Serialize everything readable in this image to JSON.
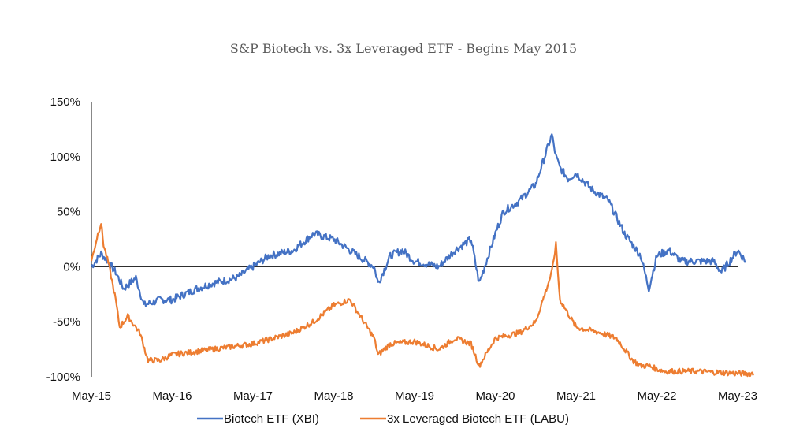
{
  "chart_data": {
    "type": "line",
    "title": "S&P Biotech vs. 3x Leveraged ETF - Begins May 2015",
    "xlabel": "",
    "ylabel": "",
    "x_ticks": [
      "May-15",
      "May-16",
      "May-17",
      "May-18",
      "May-19",
      "May-20",
      "May-21",
      "May-22",
      "May-23"
    ],
    "y_ticks": [
      "150%",
      "100%",
      "50%",
      "0%",
      "-50%",
      "-100%"
    ],
    "ylim": [
      -100,
      150
    ],
    "xlim": [
      0,
      8
    ],
    "grid": false,
    "legend_position": "bottom",
    "series": [
      {
        "name": "Biotech ETF (XBI)",
        "color": "#4472c4",
        "x": [
          0,
          0.12,
          0.2,
          0.3,
          0.4,
          0.55,
          0.65,
          0.85,
          1.0,
          1.3,
          1.5,
          1.8,
          2.0,
          2.2,
          2.5,
          2.75,
          3.0,
          3.2,
          3.5,
          3.55,
          3.7,
          3.85,
          4.0,
          4.3,
          4.5,
          4.7,
          4.8,
          5.0,
          5.1,
          5.3,
          5.5,
          5.7,
          5.75,
          5.8,
          5.9,
          6.0,
          6.2,
          6.4,
          6.6,
          6.8,
          6.9,
          7.0,
          7.15,
          7.3,
          7.5,
          7.7,
          7.8,
          8.0,
          8.1
        ],
        "y": [
          0,
          12,
          5,
          -5,
          -20,
          -10,
          -35,
          -30,
          -30,
          -20,
          -15,
          -10,
          0,
          10,
          15,
          30,
          25,
          15,
          0,
          -15,
          10,
          15,
          5,
          0,
          15,
          25,
          -15,
          30,
          50,
          60,
          75,
          120,
          100,
          90,
          80,
          85,
          70,
          60,
          30,
          10,
          -20,
          10,
          15,
          5,
          5,
          5,
          -5,
          15,
          5
        ]
      },
      {
        "name": "3x Leveraged Biotech ETF (LABU)",
        "color": "#ed7d31",
        "x": [
          0,
          0.08,
          0.12,
          0.15,
          0.22,
          0.3,
          0.35,
          0.45,
          0.6,
          0.7,
          0.85,
          1.0,
          1.5,
          2.0,
          2.5,
          2.75,
          3.0,
          3.2,
          3.5,
          3.55,
          3.7,
          4.0,
          4.3,
          4.5,
          4.7,
          4.8,
          5.0,
          5.3,
          5.5,
          5.7,
          5.75,
          5.8,
          6.0,
          6.3,
          6.5,
          6.7,
          6.8,
          6.9,
          7.0,
          7.1,
          7.5,
          8.0,
          8.2
        ],
        "y": [
          5,
          30,
          40,
          20,
          0,
          -30,
          -55,
          -45,
          -60,
          -85,
          -85,
          -80,
          -75,
          -70,
          -60,
          -50,
          -35,
          -30,
          -65,
          -80,
          -70,
          -68,
          -75,
          -65,
          -70,
          -90,
          -65,
          -60,
          -50,
          -5,
          20,
          -30,
          -55,
          -60,
          -65,
          -85,
          -90,
          -90,
          -93,
          -95,
          -95,
          -97,
          -97
        ]
      }
    ]
  }
}
